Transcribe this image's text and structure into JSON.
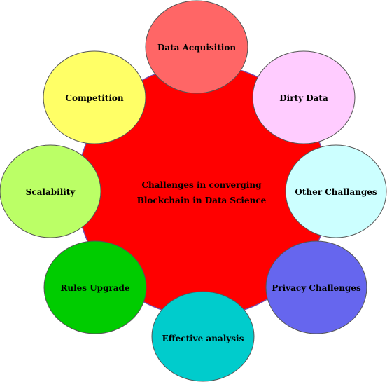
{
  "diagram": {
    "center": {
      "line1": "Challenges in converging",
      "line2": "Blockchain in Data Science",
      "color": "#ff0000"
    },
    "nodes": [
      {
        "label": "Data Acquisition",
        "color": "#ff6666"
      },
      {
        "label": "Dirty Data",
        "color": "#ffccff"
      },
      {
        "label": "Other Challanges",
        "color": "#ccffff"
      },
      {
        "label": "Privacy Challenges",
        "color": "#6666ee"
      },
      {
        "label": "Effective analysis",
        "color": "#00cccc"
      },
      {
        "label": "Rules Upgrade",
        "color": "#00cc00"
      },
      {
        "label": "Scalability",
        "color": "#bbff66"
      },
      {
        "label": "Competition",
        "color": "#ffff66"
      }
    ]
  }
}
